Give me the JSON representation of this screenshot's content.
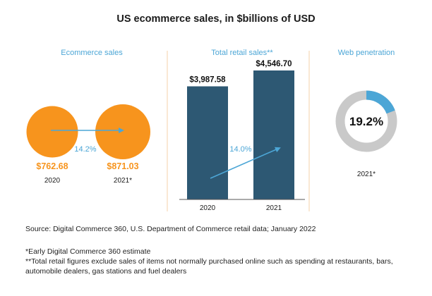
{
  "chart_data": {
    "title": "US ecommerce sales, in $billions of USD",
    "colors": {
      "ecommerce": "#f7941d",
      "retail_bar": "#2d5873",
      "accent": "#4ca6d6",
      "donut_rest": "#c9c9c9",
      "divider": "#f6d2a8"
    },
    "panels": [
      {
        "type": "bubble",
        "title": "Ecommerce sales",
        "categories": [
          "2020",
          "2021*"
        ],
        "values": [
          762.68,
          871.03
        ],
        "value_labels": [
          "$762.68",
          "$871.03"
        ],
        "growth_label": "14.2%",
        "growth": 14.2
      },
      {
        "type": "bar",
        "title": "Total retail sales**",
        "categories": [
          "2020",
          "2021"
        ],
        "values": [
          3987.58,
          4546.7
        ],
        "value_labels": [
          "$3,987.58",
          "$4,546.70"
        ],
        "growth_label": "14.0%",
        "growth": 14.0,
        "ylim": [
          0,
          4546.7
        ]
      },
      {
        "type": "pie",
        "title": "Web penetration",
        "value": 19.2,
        "value_label": "19.2%",
        "category": "2021*"
      }
    ]
  },
  "notes": {
    "source": "Source: Digital Commerce 360, U.S. Department of Commerce retail data; January 2022",
    "note1": "*Early Digital Commerce 360 estimate",
    "note2": "**Total retail figures exclude sales of items not normally purchased online such as spending at restaurants, bars, automobile dealers, gas stations and fuel dealers"
  }
}
